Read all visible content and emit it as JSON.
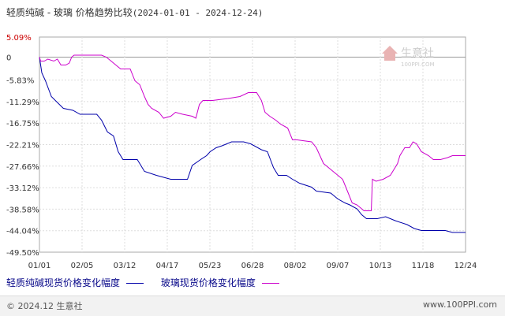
{
  "header": {
    "title": "轻质纯碱 - 玻璃 价格趋势比较",
    "date_range": "(2024-01-01 - 2024-12-24)"
  },
  "watermark": {
    "text": "生意社",
    "sub": "100PPI.COM"
  },
  "legend": {
    "series1": "轻质纯碱现货价格变化幅度",
    "series2": "玻璃现货价格变化幅度"
  },
  "footer": {
    "left": "© 2024.12 生意社",
    "right": "www.100PPI.com"
  },
  "chart_data": {
    "type": "line",
    "x": [
      "01/01",
      "02/05",
      "03/12",
      "04/17",
      "05/23",
      "06/28",
      "08/02",
      "09/07",
      "10/13",
      "11/18",
      "12/24"
    ],
    "ylabel_ticks": [
      "5.09%",
      "0",
      "-5.83%",
      "-11.29%",
      "-16.75%",
      "-22.21%",
      "-27.66%",
      "-33.12%",
      "-38.58%",
      "-44.04%",
      "-49.50%"
    ],
    "ylim": [
      -49.5,
      5.09
    ],
    "zero_line": true,
    "grid": true,
    "series": [
      {
        "name": "轻质纯碱现货价格变化幅度",
        "color": "#0000aa",
        "points": [
          [
            0,
            0
          ],
          [
            2,
            -4
          ],
          [
            5,
            -6
          ],
          [
            10,
            -10
          ],
          [
            20,
            -13
          ],
          [
            28,
            -13.5
          ],
          [
            34,
            -14.5
          ],
          [
            43,
            -14.5
          ],
          [
            48,
            -14.5
          ],
          [
            52,
            -16
          ],
          [
            57,
            -19
          ],
          [
            62,
            -20
          ],
          [
            66,
            -24
          ],
          [
            70,
            -26
          ],
          [
            82,
            -26
          ],
          [
            88,
            -29
          ],
          [
            98,
            -30
          ],
          [
            110,
            -31
          ],
          [
            124,
            -31
          ],
          [
            128,
            -27.5
          ],
          [
            135,
            -26
          ],
          [
            140,
            -25
          ],
          [
            143,
            -24
          ],
          [
            148,
            -23
          ],
          [
            153,
            -22.5
          ],
          [
            161,
            -21.5
          ],
          [
            171,
            -21.5
          ],
          [
            177,
            -22
          ],
          [
            186,
            -23.5
          ],
          [
            191,
            -24
          ],
          [
            196,
            -28
          ],
          [
            200,
            -30
          ],
          [
            207,
            -30
          ],
          [
            212,
            -31
          ],
          [
            218,
            -32
          ],
          [
            228,
            -33
          ],
          [
            232,
            -34
          ],
          [
            244,
            -34.5
          ],
          [
            250,
            -36
          ],
          [
            256,
            -37
          ],
          [
            260,
            -37.5
          ],
          [
            266,
            -38.5
          ],
          [
            270,
            -40
          ],
          [
            274,
            -41
          ],
          [
            283,
            -41
          ],
          [
            290,
            -40.5
          ],
          [
            298,
            -41.5
          ],
          [
            308,
            -42.5
          ],
          [
            314,
            -43.5
          ],
          [
            320,
            -44
          ],
          [
            326,
            -44
          ],
          [
            340,
            -44
          ],
          [
            346,
            -44.5
          ],
          [
            357,
            -44.5
          ]
        ]
      },
      {
        "name": "玻璃现货价格变化幅度",
        "color": "#cc00cc",
        "points": [
          [
            0,
            0
          ],
          [
            1,
            -1
          ],
          [
            4,
            -1
          ],
          [
            7,
            -0.5
          ],
          [
            12,
            -1
          ],
          [
            15,
            -0.5
          ],
          [
            18,
            -2
          ],
          [
            22,
            -2
          ],
          [
            25,
            -1.5
          ],
          [
            27,
            0
          ],
          [
            29,
            0.5
          ],
          [
            33,
            0.5
          ],
          [
            38,
            0.5
          ],
          [
            45,
            0.5
          ],
          [
            52,
            0.5
          ],
          [
            56,
            0
          ],
          [
            60,
            -1
          ],
          [
            64,
            -2
          ],
          [
            68,
            -3
          ],
          [
            72,
            -3
          ],
          [
            76,
            -3
          ],
          [
            80,
            -6
          ],
          [
            84,
            -7
          ],
          [
            88,
            -10
          ],
          [
            91,
            -12
          ],
          [
            94,
            -13
          ],
          [
            100,
            -14
          ],
          [
            104,
            -15.5
          ],
          [
            110,
            -15
          ],
          [
            114,
            -14
          ],
          [
            120,
            -14.5
          ],
          [
            128,
            -15
          ],
          [
            131,
            -15.5
          ],
          [
            134,
            -12
          ],
          [
            137,
            -11
          ],
          [
            145,
            -11
          ],
          [
            158,
            -10.5
          ],
          [
            168,
            -10
          ],
          [
            175,
            -9
          ],
          [
            182,
            -9
          ],
          [
            186,
            -11
          ],
          [
            189,
            -14
          ],
          [
            193,
            -15
          ],
          [
            198,
            -16
          ],
          [
            202,
            -17
          ],
          [
            208,
            -18
          ],
          [
            212,
            -21
          ],
          [
            216,
            -21
          ],
          [
            228,
            -21.5
          ],
          [
            232,
            -23
          ],
          [
            238,
            -27
          ],
          [
            242,
            -28
          ],
          [
            246,
            -29
          ],
          [
            250,
            -30
          ],
          [
            254,
            -31
          ],
          [
            258,
            -34
          ],
          [
            262,
            -37
          ],
          [
            266,
            -37.5
          ],
          [
            272,
            -39
          ],
          [
            278,
            -39
          ],
          [
            279,
            -31
          ],
          [
            282,
            -31.5
          ],
          [
            288,
            -31
          ],
          [
            294,
            -30
          ],
          [
            298,
            -28
          ],
          [
            300,
            -27
          ],
          [
            302,
            -25
          ],
          [
            306,
            -23
          ],
          [
            310,
            -23
          ],
          [
            313,
            -21.5
          ],
          [
            316,
            -22
          ],
          [
            320,
            -24
          ],
          [
            326,
            -25
          ],
          [
            330,
            -26
          ],
          [
            336,
            -26
          ],
          [
            342,
            -25.5
          ],
          [
            346,
            -25
          ],
          [
            352,
            -25
          ],
          [
            357,
            -25
          ]
        ]
      }
    ]
  }
}
